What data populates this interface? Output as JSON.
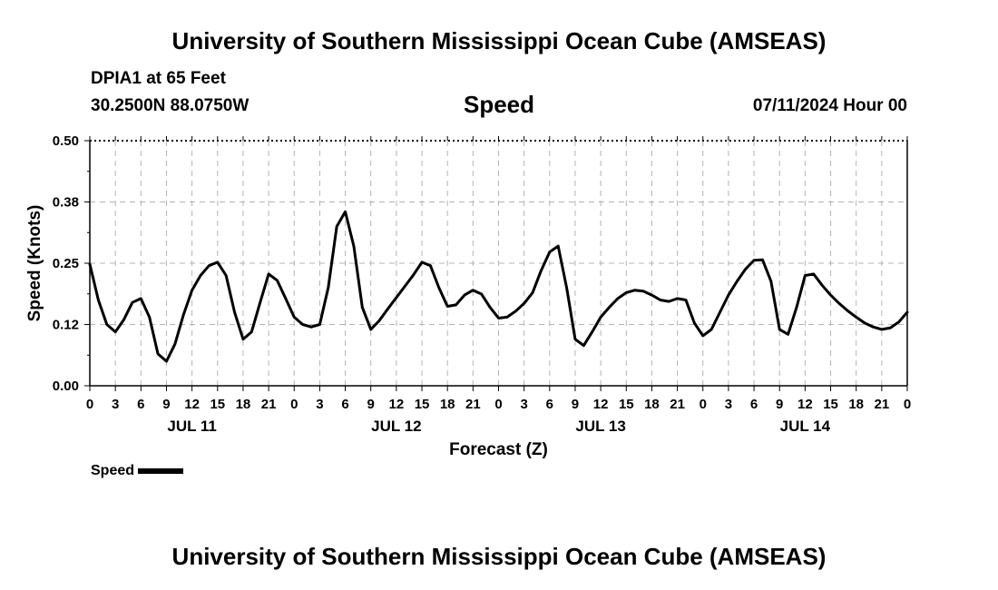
{
  "header": {
    "title": "University of Southern Mississippi Ocean Cube (AMSEAS)",
    "station": "DPIA1 at 65 Feet",
    "coordinates": "30.2500N  88.0750W",
    "parameter": "Speed",
    "datetime": "07/11/2024 Hour 00"
  },
  "footer": {
    "title": "University of Southern Mississippi Ocean Cube (AMSEAS)"
  },
  "legend": {
    "label": "Speed",
    "color": "#000000"
  },
  "chart_data": {
    "type": "line",
    "title": "Speed",
    "xlabel": "Forecast (Z)",
    "ylabel": "Speed (Knots)",
    "ylim": [
      0,
      0.5
    ],
    "xlim": [
      0,
      96
    ],
    "y_ticks": [
      "0.00",
      "0.12",
      "0.25",
      "0.38",
      "0.50"
    ],
    "y_tick_values": [
      0,
      0.125,
      0.25,
      0.375,
      0.5
    ],
    "x_tick_labels": [
      "0",
      "3",
      "6",
      "9",
      "12",
      "15",
      "18",
      "21",
      "0",
      "3",
      "6",
      "9",
      "12",
      "15",
      "18",
      "21",
      "0",
      "3",
      "6",
      "9",
      "12",
      "15",
      "18",
      "21",
      "0",
      "3",
      "6",
      "9",
      "12",
      "15",
      "18",
      "21",
      "0"
    ],
    "x_tick_values": [
      0,
      3,
      6,
      9,
      12,
      15,
      18,
      21,
      24,
      27,
      30,
      33,
      36,
      39,
      42,
      45,
      48,
      51,
      54,
      57,
      60,
      63,
      66,
      69,
      72,
      75,
      78,
      81,
      84,
      87,
      90,
      93,
      96
    ],
    "date_labels": [
      {
        "label": "JUL 11",
        "hour": 12
      },
      {
        "label": "JUL 12",
        "hour": 36
      },
      {
        "label": "JUL 13",
        "hour": 60
      },
      {
        "label": "JUL 14",
        "hour": 84
      }
    ],
    "grid": true,
    "series": [
      {
        "name": "Speed",
        "x": [
          0,
          1,
          2,
          3,
          4,
          5,
          6,
          7,
          8,
          9,
          10,
          11,
          12,
          13,
          14,
          15,
          16,
          17,
          18,
          19,
          20,
          21,
          22,
          23,
          24,
          25,
          26,
          27,
          28,
          29,
          30,
          31,
          32,
          33,
          34,
          35,
          36,
          37,
          38,
          39,
          40,
          41,
          42,
          43,
          44,
          45,
          46,
          47,
          48,
          49,
          50,
          51,
          52,
          53,
          54,
          55,
          56,
          57,
          58,
          59,
          60,
          61,
          62,
          63,
          64,
          65,
          66,
          67,
          68,
          69,
          70,
          71,
          72,
          73,
          74,
          75,
          76,
          77,
          78,
          79,
          80,
          81,
          82,
          83,
          84,
          85,
          86,
          87,
          88,
          89,
          90,
          91,
          92,
          93,
          94,
          95,
          96
        ],
        "values": [
          0.248,
          0.175,
          0.125,
          0.11,
          0.135,
          0.17,
          0.178,
          0.14,
          0.065,
          0.05,
          0.085,
          0.145,
          0.195,
          0.225,
          0.245,
          0.252,
          0.225,
          0.15,
          0.095,
          0.11,
          0.17,
          0.228,
          0.215,
          0.178,
          0.14,
          0.125,
          0.12,
          0.125,
          0.2,
          0.325,
          0.355,
          0.285,
          0.16,
          0.115,
          0.133,
          0.157,
          0.18,
          0.203,
          0.226,
          0.252,
          0.245,
          0.2,
          0.162,
          0.165,
          0.185,
          0.195,
          0.187,
          0.16,
          0.138,
          0.14,
          0.152,
          0.168,
          0.19,
          0.235,
          0.273,
          0.285,
          0.2,
          0.095,
          0.082,
          0.11,
          0.14,
          0.16,
          0.178,
          0.19,
          0.195,
          0.193,
          0.185,
          0.175,
          0.172,
          0.178,
          0.175,
          0.128,
          0.102,
          0.115,
          0.15,
          0.185,
          0.213,
          0.238,
          0.256,
          0.257,
          0.213,
          0.115,
          0.105,
          0.16,
          0.225,
          0.228,
          0.205,
          0.185,
          0.168,
          0.153,
          0.14,
          0.128,
          0.12,
          0.115,
          0.118,
          0.13,
          0.15
        ]
      }
    ]
  }
}
